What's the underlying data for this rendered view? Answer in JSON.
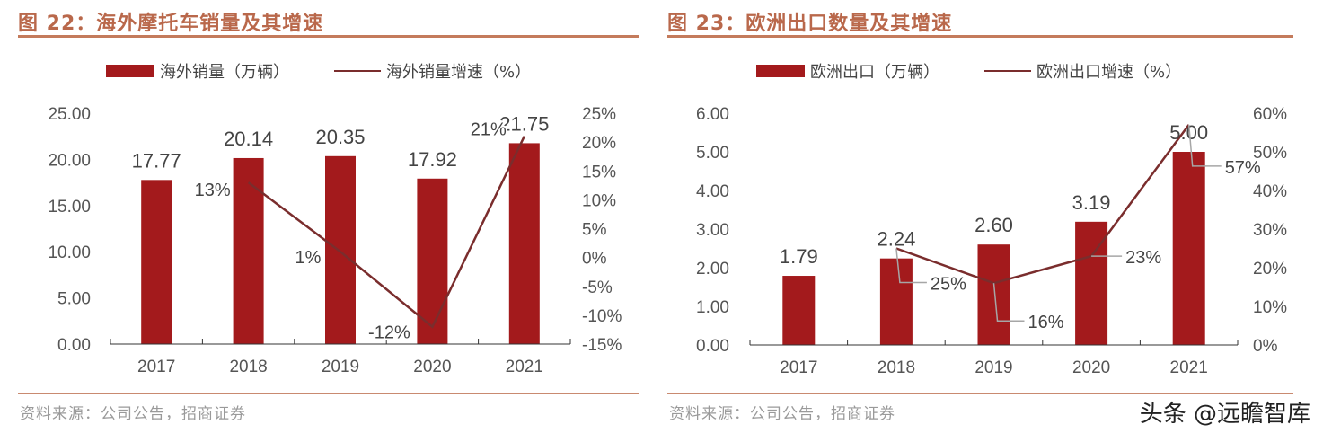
{
  "colors": {
    "bar": "#a31a1c",
    "line": "#7a2d2d",
    "title": "#b9684b",
    "leader": "#a6a6a6"
  },
  "chart_data": [
    {
      "type": "bar+line",
      "title": "图 22：海外摩托车销量及其增速",
      "source": "资料来源：公司公告，招商证券",
      "categories": [
        "2017",
        "2018",
        "2019",
        "2020",
        "2021"
      ],
      "series": [
        {
          "name": "海外销量（万辆）",
          "type": "bar",
          "axis": "left",
          "values": [
            17.77,
            20.14,
            20.35,
            17.92,
            21.75
          ],
          "labels": [
            "17.77",
            "20.14",
            "20.35",
            "17.92",
            "21.75"
          ]
        },
        {
          "name": "海外销量增速（%）",
          "type": "line",
          "axis": "right",
          "values": [
            null,
            13,
            1,
            -12,
            21
          ],
          "labels": [
            "",
            "13%",
            "1%",
            "-12%",
            "21%"
          ]
        }
      ],
      "left_axis": {
        "range": [
          0,
          25
        ],
        "ticks": [
          "0.00",
          "5.00",
          "10.00",
          "15.00",
          "20.00",
          "25.00"
        ]
      },
      "right_axis": {
        "range": [
          -15,
          25
        ],
        "ticks": [
          "-15%",
          "-10%",
          "-5%",
          "0%",
          "5%",
          "10%",
          "15%",
          "20%",
          "25%"
        ]
      },
      "legend": "top"
    },
    {
      "type": "bar+line",
      "title": "图 23：欧洲出口数量及其增速",
      "source": "资料来源：公司公告，招商证券",
      "categories": [
        "2017",
        "2018",
        "2019",
        "2020",
        "2021"
      ],
      "series": [
        {
          "name": "欧洲出口（万辆）",
          "type": "bar",
          "axis": "left",
          "values": [
            1.79,
            2.24,
            2.6,
            3.19,
            5.0
          ],
          "labels": [
            "1.79",
            "2.24",
            "2.60",
            "3.19",
            "5.00"
          ]
        },
        {
          "name": "欧洲出口增速（%）",
          "type": "line",
          "axis": "right",
          "values": [
            null,
            25,
            16,
            23,
            57
          ],
          "labels": [
            "",
            "25%",
            "16%",
            "23%",
            "57%"
          ]
        }
      ],
      "left_axis": {
        "range": [
          0,
          6
        ],
        "ticks": [
          "0.00",
          "1.00",
          "2.00",
          "3.00",
          "4.00",
          "5.00",
          "6.00"
        ]
      },
      "right_axis": {
        "range": [
          0,
          60
        ],
        "ticks": [
          "0%",
          "10%",
          "20%",
          "30%",
          "40%",
          "50%",
          "60%"
        ]
      },
      "legend": "top"
    }
  ],
  "watermark": "头条 @远瞻智库"
}
